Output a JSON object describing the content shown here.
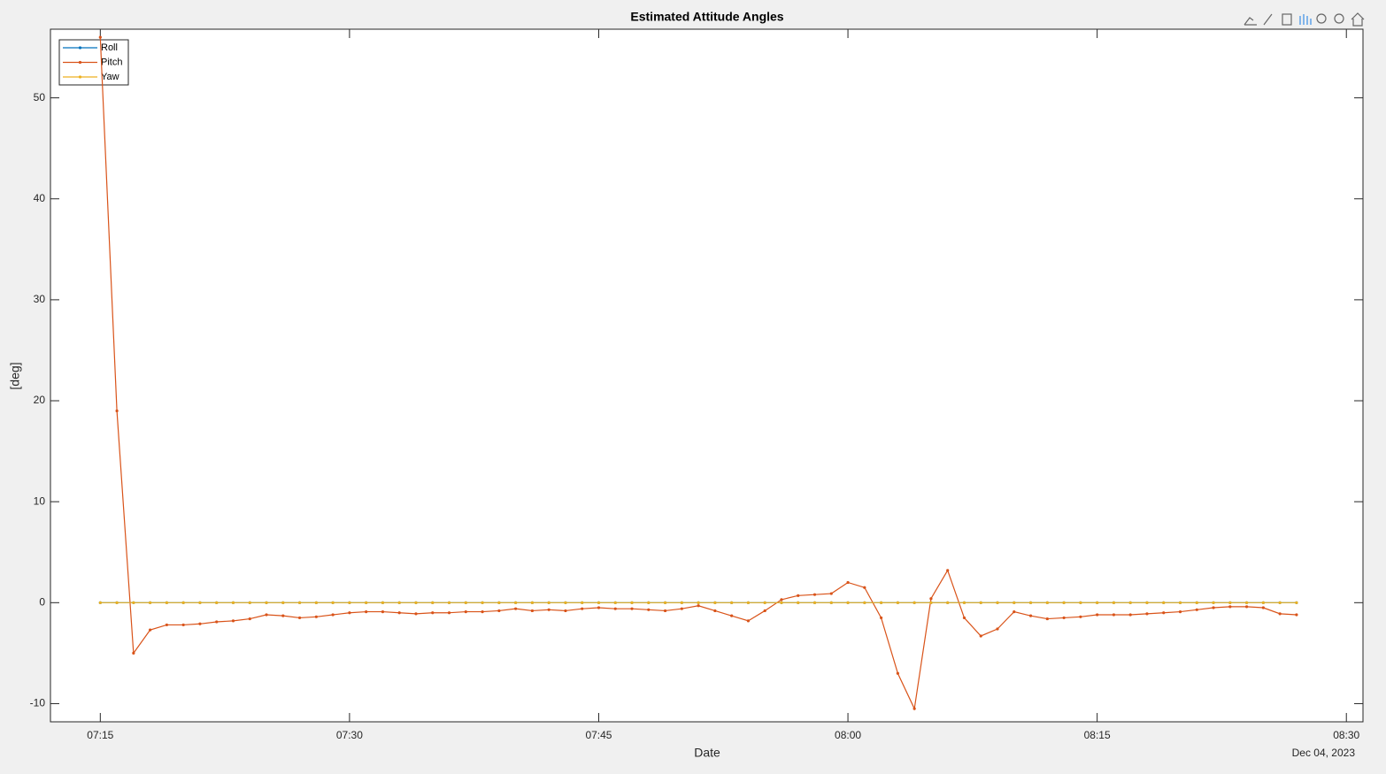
{
  "chart_data": {
    "type": "line",
    "title": "Estimated Attitude Angles",
    "x_label": "Date",
    "y_label": "[deg]",
    "date_label": "Dec 04, 2023",
    "x": [
      "07:15",
      "07:16",
      "07:17",
      "07:18",
      "07:19",
      "07:20",
      "07:21",
      "07:22",
      "07:23",
      "07:24",
      "07:25",
      "07:26",
      "07:27",
      "07:28",
      "07:29",
      "07:30",
      "07:31",
      "07:32",
      "07:33",
      "07:34",
      "07:35",
      "07:36",
      "07:37",
      "07:38",
      "07:39",
      "07:40",
      "07:41",
      "07:42",
      "07:43",
      "07:44",
      "07:45",
      "07:46",
      "07:47",
      "07:48",
      "07:49",
      "07:50",
      "07:51",
      "07:52",
      "07:53",
      "07:54",
      "07:55",
      "07:56",
      "07:57",
      "07:58",
      "07:59",
      "08:00",
      "08:01",
      "08:02",
      "08:03",
      "08:04",
      "08:05",
      "08:06",
      "08:07",
      "08:08",
      "08:09",
      "08:10",
      "08:11",
      "08:12",
      "08:13",
      "08:14",
      "08:15",
      "08:16",
      "08:17",
      "08:18",
      "08:19",
      "08:20",
      "08:21",
      "08:22",
      "08:23",
      "08:24",
      "08:25",
      "08:26",
      "08:27"
    ],
    "series": [
      {
        "name": "Roll",
        "color": "#0072bd",
        "values": [
          0,
          0,
          0,
          0,
          0,
          0,
          0,
          0,
          0,
          0,
          0,
          0,
          0,
          0,
          0,
          0,
          0,
          0,
          0,
          0,
          0,
          0,
          0,
          0,
          0,
          0,
          0,
          0,
          0,
          0,
          0,
          0,
          0,
          0,
          0,
          0,
          0,
          0,
          0,
          0,
          0,
          0,
          0,
          0,
          0,
          0,
          0,
          0,
          0,
          0,
          0,
          0,
          0,
          0,
          0,
          0,
          0,
          0,
          0,
          0,
          0,
          0,
          0,
          0,
          0,
          0,
          0,
          0,
          0,
          0,
          0,
          0,
          0
        ]
      },
      {
        "name": "Pitch",
        "color": "#d95319",
        "values": [
          56,
          19,
          -5,
          -2.7,
          -2.2,
          -2.2,
          -2.1,
          -1.9,
          -1.8,
          -1.6,
          -1.2,
          -1.3,
          -1.5,
          -1.4,
          -1.2,
          -1.0,
          -0.9,
          -0.9,
          -1.0,
          -1.1,
          -1.0,
          -1.0,
          -0.9,
          -0.9,
          -0.8,
          -0.6,
          -0.8,
          -0.7,
          -0.8,
          -0.6,
          -0.5,
          -0.6,
          -0.6,
          -0.7,
          -0.8,
          -0.6,
          -0.3,
          -0.8,
          -1.3,
          -1.8,
          -0.8,
          0.3,
          0.7,
          0.8,
          0.9,
          2.0,
          1.5,
          -1.5,
          -7,
          -10.5,
          0.4,
          3.2,
          -1.5,
          -3.3,
          -2.6,
          -0.9,
          -1.3,
          -1.6,
          -1.5,
          -1.4,
          -1.2,
          -1.2,
          -1.2,
          -1.1,
          -1.0,
          -0.9,
          -0.7,
          -0.5,
          -0.4,
          -0.4,
          -0.5,
          -1.1,
          -1.2
        ]
      },
      {
        "name": "Yaw",
        "color": "#edb120",
        "values": [
          0,
          0,
          0,
          0,
          0,
          0,
          0,
          0,
          0,
          0,
          0,
          0,
          0,
          0,
          0,
          0,
          0,
          0,
          0,
          0,
          0,
          0,
          0,
          0,
          0,
          0,
          0,
          0,
          0,
          0,
          0,
          0,
          0,
          0,
          0,
          0,
          0,
          0,
          0,
          0,
          0,
          0,
          0,
          0,
          0,
          0,
          0,
          0,
          0,
          0,
          0,
          0,
          0,
          0,
          0,
          0,
          0,
          0,
          0,
          0,
          0,
          0,
          0,
          0,
          0,
          0,
          0,
          0,
          0,
          0,
          0,
          0,
          0
        ]
      }
    ],
    "xlim": [
      "07:12",
      "08:31"
    ],
    "xticks": [
      "07:15",
      "07:30",
      "07:45",
      "08:00",
      "08:15",
      "08:30"
    ],
    "ylim": [
      -11.8,
      56.8
    ],
    "yticks": [
      -10,
      0,
      10,
      20,
      30,
      40,
      50
    ],
    "grid": false,
    "legend": "top-left"
  }
}
